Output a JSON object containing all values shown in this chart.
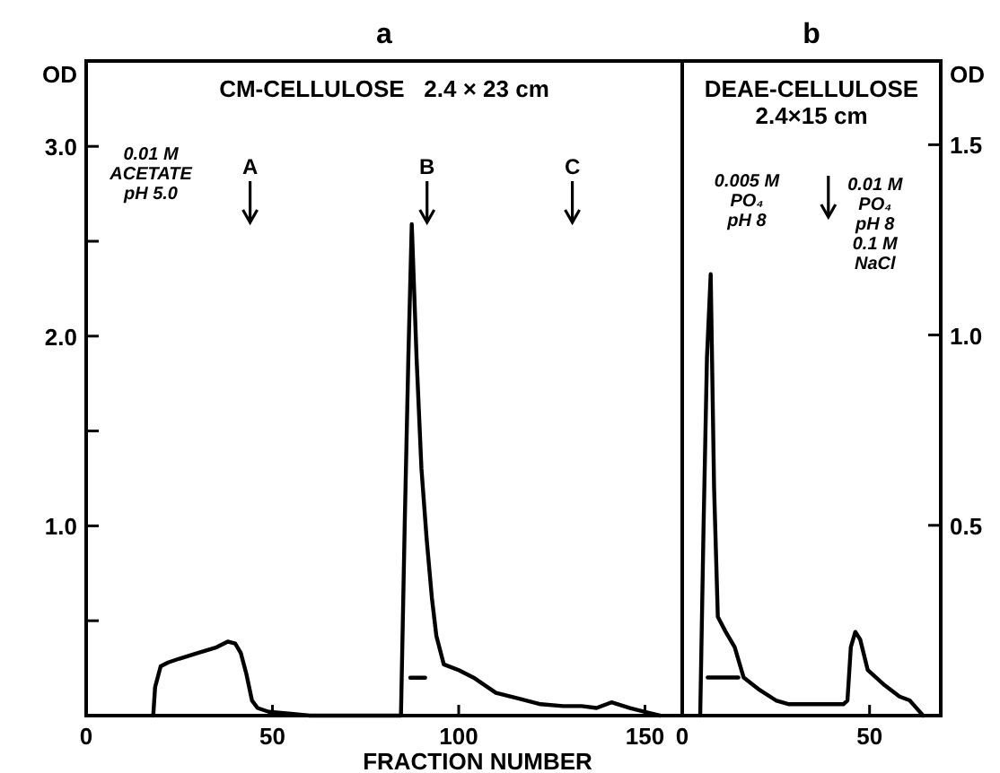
{
  "chart_data": [
    {
      "type": "line",
      "title": "a",
      "subtitle": "CM-CELLULOSE   2.4 × 23 cm",
      "xlabel": "FRACTION NUMBER",
      "ylabel": "OD",
      "xlim": [
        0,
        160
      ],
      "xticks": [
        0,
        50,
        100,
        150
      ],
      "ylim": [
        0,
        3.45
      ],
      "yticks": [
        {
          "value": 0.5,
          "label": null
        },
        {
          "value": 1,
          "label": "1.0"
        },
        {
          "value": 1.5,
          "label": null
        },
        {
          "value": 2,
          "label": "2.0"
        },
        {
          "value": 2.5,
          "label": null
        },
        {
          "value": 3,
          "label": "3.0"
        }
      ],
      "grid": false,
      "marker": "none",
      "line_style": "solid",
      "series": [
        {
          "color": "#000000",
          "x": [
            18,
            18.5,
            20,
            22,
            25,
            30,
            35,
            38,
            40,
            41.5,
            43,
            44.5,
            46,
            49,
            55,
            60,
            84.5,
            85.5,
            86.5,
            87.4,
            88.7,
            90,
            91.4,
            92.8,
            94,
            96,
            100,
            104,
            110,
            116,
            122,
            128,
            133,
            137,
            141,
            146,
            150,
            154
          ],
          "values": [
            0,
            0.15,
            0.26,
            0.28,
            0.3,
            0.33,
            0.36,
            0.39,
            0.38,
            0.33,
            0.22,
            0.08,
            0.04,
            0.02,
            0.01,
            0,
            0,
            1.0,
            1.9,
            2.59,
            1.88,
            1.3,
            0.93,
            0.62,
            0.42,
            0.27,
            0.24,
            0.2,
            0.12,
            0.09,
            0.06,
            0.05,
            0.05,
            0.04,
            0.07,
            0.04,
            0.02,
            0
          ]
        },
        {
          "color": "#000000",
          "x": [
            87,
            91
          ],
          "values": [
            0.2,
            0.2
          ]
        }
      ],
      "annotations": [
        "0.01 M\nACETATE\npH 5.0"
      ],
      "ref_lines": [
        {
          "axis": "x",
          "value": 44,
          "label": "A"
        },
        {
          "axis": "x",
          "value": 91.5,
          "label": "B"
        },
        {
          "axis": "x",
          "value": 130.5,
          "label": "C"
        }
      ]
    },
    {
      "type": "line",
      "title": "b",
      "subtitle": "DEAE-CELLULOSE\n2.4×15 cm",
      "y2label": "OD",
      "xlim": [
        0,
        69
      ],
      "xticks": [
        0,
        50
      ],
      "y2lim": [
        0,
        1.72
      ],
      "y2ticks": [
        {
          "value": 0.5,
          "label": "0.5"
        },
        {
          "value": 1,
          "label": "1.0"
        },
        {
          "value": 1.5,
          "label": "1.5"
        }
      ],
      "grid": false,
      "marker": "none",
      "line_style": "solid",
      "series": [
        {
          "color": "#000000",
          "axis": "y2",
          "x": [
            4.8,
            5.7,
            6.6,
            7.6,
            8.5,
            9.5,
            11.6,
            14,
            16.4,
            20.3,
            25,
            28.5,
            35,
            43,
            44.1,
            45,
            46.2,
            47.5,
            49.5,
            54,
            58,
            60.7,
            64.3
          ],
          "values": [
            0,
            0.5,
            0.94,
            1.16,
            0.6,
            0.26,
            0.22,
            0.18,
            0.1,
            0.07,
            0.04,
            0.03,
            0.03,
            0.03,
            0.04,
            0.18,
            0.22,
            0.2,
            0.12,
            0.08,
            0.05,
            0.04,
            0
          ]
        },
        {
          "color": "#000000",
          "axis": "y2",
          "x": [
            6.8,
            15
          ],
          "values": [
            0.1,
            0.1
          ]
        }
      ],
      "annotations": [
        "0.005 M\nPO₄\npH 8"
      ],
      "ref_lines": [
        {
          "axis": "x",
          "value": 39,
          "label": "0.01 M\nPO₄\npH 8\n0.1 M\nNaCl"
        }
      ]
    }
  ]
}
